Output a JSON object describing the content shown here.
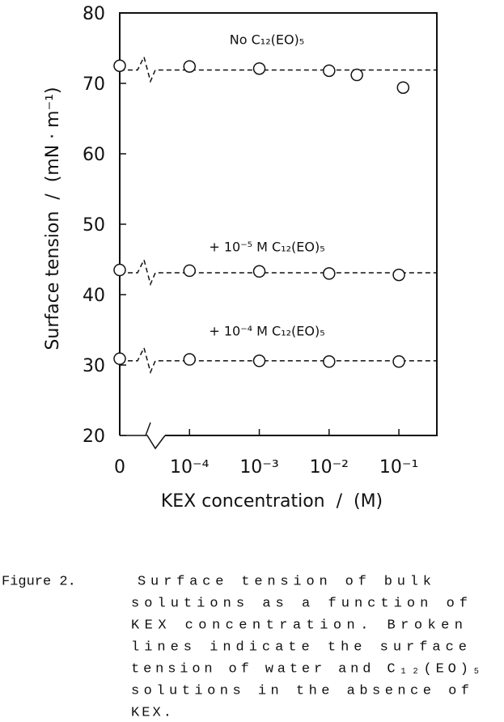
{
  "chart_data": {
    "type": "scatter",
    "x_label": "KEX concentration  /  (M)",
    "y_label": "Surface tension  /  (mN · m⁻¹)",
    "x_scale": "log",
    "x_break": true,
    "xlim": [
      1e-05,
      0.35
    ],
    "xticks": [
      {
        "value": 0,
        "label": "0"
      },
      {
        "value": 0.0001,
        "label": "10⁻⁴"
      },
      {
        "value": 0.001,
        "label": "10⁻³"
      },
      {
        "value": 0.01,
        "label": "10⁻²"
      },
      {
        "value": 0.1,
        "label": "10⁻¹"
      }
    ],
    "ylim": [
      20,
      80
    ],
    "yticks": [
      20,
      30,
      40,
      50,
      60,
      70,
      80
    ],
    "series": [
      {
        "name": "No C₁₂(EO)₅",
        "color": "#111111",
        "x": [
          0,
          0.0001,
          0.001,
          0.01,
          0.025,
          0.115
        ],
        "values": [
          72.5,
          72.4,
          72.1,
          71.8,
          71.2,
          69.4
        ],
        "reference": 71.9
      },
      {
        "name": "+ 10⁻⁵ M C₁₂(EO)₅",
        "color": "#111111",
        "x": [
          0,
          0.0001,
          0.001,
          0.01,
          0.1
        ],
        "values": [
          43.5,
          43.4,
          43.3,
          43.0,
          42.8
        ],
        "reference": 43.1
      },
      {
        "name": "+ 10⁻⁴ M C₁₂(EO)₅",
        "color": "#111111",
        "x": [
          0,
          0.0001,
          0.001,
          0.01,
          0.1
        ],
        "values": [
          30.9,
          30.8,
          30.6,
          30.5,
          30.5
        ],
        "reference": 30.6
      }
    ]
  },
  "caption": {
    "label": "Figure 2.",
    "lines": [
      "Surface tension of bulk",
      "solutions as a function of",
      "KEX concentration. Broken",
      "lines indicate the surface",
      "tension of water and C₁₂(EO)₅",
      "solutions in the absence of",
      "KEX."
    ]
  }
}
